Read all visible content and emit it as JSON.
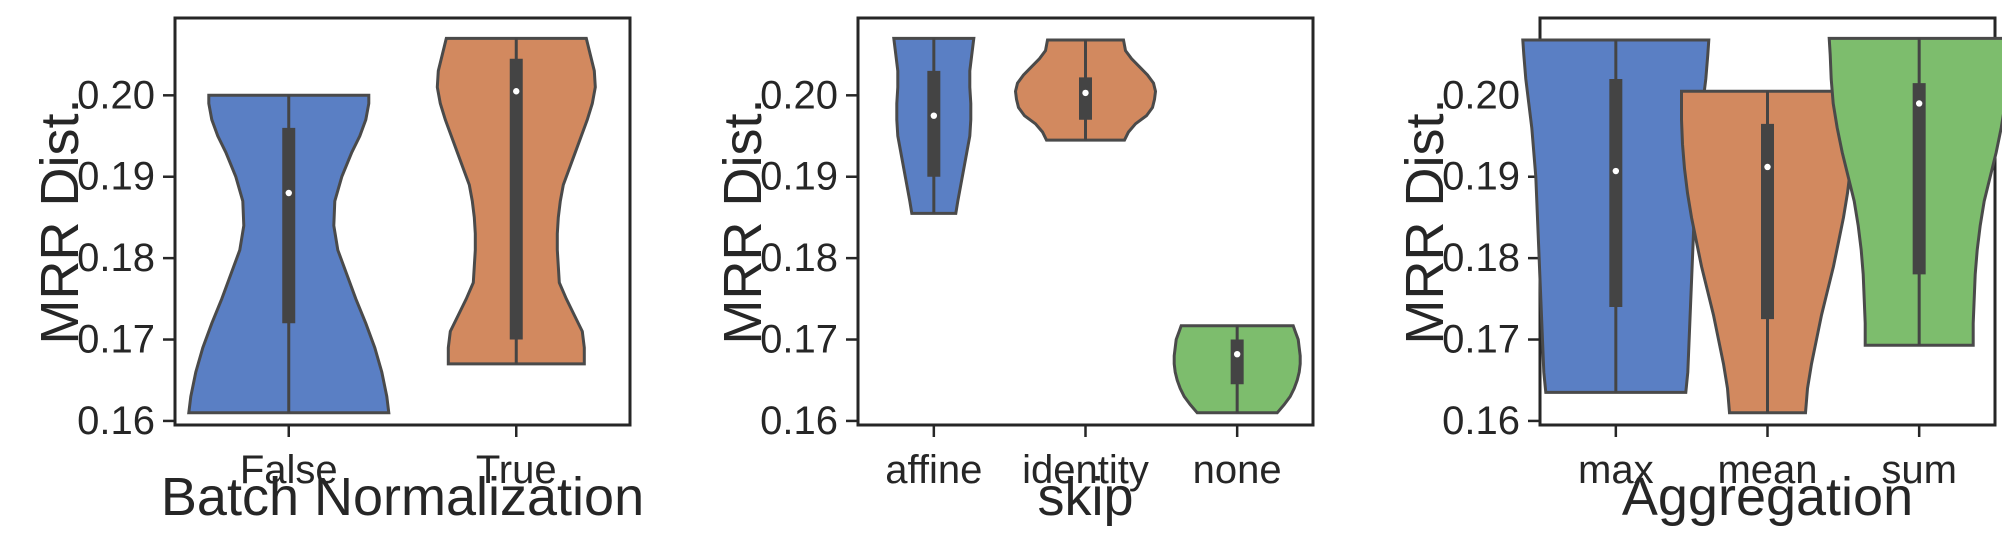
{
  "chart_data": [
    {
      "type": "violin",
      "xlabel": "Batch Normalization",
      "ylabel": "MRR Dist.",
      "ylim": [
        0.1595,
        0.2095
      ],
      "yticks": [
        "0.16",
        "0.17",
        "0.18",
        "0.19",
        "0.20"
      ],
      "categories": [
        {
          "label": "False",
          "color": "#5a7fc4",
          "min": 0.161,
          "max": 0.2,
          "q1": 0.172,
          "median": 0.188,
          "q3": 0.196,
          "profile": [
            [
              0.161,
              1.0
            ],
            [
              0.163,
              0.98
            ],
            [
              0.166,
              0.93
            ],
            [
              0.169,
              0.86
            ],
            [
              0.172,
              0.77
            ],
            [
              0.175,
              0.67
            ],
            [
              0.178,
              0.58
            ],
            [
              0.181,
              0.49
            ],
            [
              0.184,
              0.45
            ],
            [
              0.187,
              0.46
            ],
            [
              0.19,
              0.53
            ],
            [
              0.193,
              0.63
            ],
            [
              0.195,
              0.71
            ],
            [
              0.197,
              0.77
            ],
            [
              0.199,
              0.8
            ],
            [
              0.2,
              0.8
            ]
          ]
        },
        {
          "label": "True",
          "color": "#d2895f",
          "min": 0.167,
          "max": 0.207,
          "q1": 0.17,
          "median": 0.2005,
          "q3": 0.2045,
          "profile": [
            [
              0.167,
              0.68
            ],
            [
              0.169,
              0.68
            ],
            [
              0.171,
              0.66
            ],
            [
              0.173,
              0.58
            ],
            [
              0.175,
              0.5
            ],
            [
              0.177,
              0.43
            ],
            [
              0.179,
              0.42
            ],
            [
              0.181,
              0.41
            ],
            [
              0.183,
              0.41
            ],
            [
              0.185,
              0.42
            ],
            [
              0.187,
              0.44
            ],
            [
              0.189,
              0.47
            ],
            [
              0.191,
              0.53
            ],
            [
              0.193,
              0.59
            ],
            [
              0.195,
              0.65
            ],
            [
              0.197,
              0.71
            ],
            [
              0.199,
              0.76
            ],
            [
              0.201,
              0.79
            ],
            [
              0.203,
              0.78
            ],
            [
              0.205,
              0.74
            ],
            [
              0.207,
              0.7
            ]
          ]
        }
      ]
    },
    {
      "type": "violin",
      "xlabel": "skip",
      "ylabel": "MRR Dist.",
      "ylim": [
        0.1595,
        0.2095
      ],
      "yticks": [
        "0.16",
        "0.17",
        "0.18",
        "0.19",
        "0.20"
      ],
      "categories": [
        {
          "label": "affine",
          "color": "#5a7fc4",
          "min": 0.1855,
          "max": 0.207,
          "q1": 0.19,
          "median": 0.1975,
          "q3": 0.203,
          "profile": [
            [
              0.1855,
              0.22
            ],
            [
              0.187,
              0.24
            ],
            [
              0.189,
              0.27
            ],
            [
              0.191,
              0.3
            ],
            [
              0.193,
              0.33
            ],
            [
              0.195,
              0.36
            ],
            [
              0.197,
              0.37
            ],
            [
              0.199,
              0.37
            ],
            [
              0.201,
              0.36
            ],
            [
              0.203,
              0.36
            ],
            [
              0.205,
              0.38
            ],
            [
              0.207,
              0.4
            ]
          ]
        },
        {
          "label": "identity",
          "color": "#d2895f",
          "min": 0.1945,
          "max": 0.2068,
          "q1": 0.197,
          "median": 0.2003,
          "q3": 0.2022,
          "profile": [
            [
              0.1945,
              0.39
            ],
            [
              0.1955,
              0.43
            ],
            [
              0.1965,
              0.5
            ],
            [
              0.1975,
              0.61
            ],
            [
              0.1985,
              0.67
            ],
            [
              0.1995,
              0.69
            ],
            [
              0.2005,
              0.7
            ],
            [
              0.2015,
              0.68
            ],
            [
              0.2025,
              0.62
            ],
            [
              0.2035,
              0.54
            ],
            [
              0.2045,
              0.46
            ],
            [
              0.2055,
              0.4
            ],
            [
              0.2068,
              0.38
            ]
          ]
        },
        {
          "label": "none",
          "color": "#7dbd6d",
          "min": 0.161,
          "max": 0.1717,
          "q1": 0.1645,
          "median": 0.1682,
          "q3": 0.17,
          "profile": [
            [
              0.161,
              0.4
            ],
            [
              0.162,
              0.47
            ],
            [
              0.163,
              0.53
            ],
            [
              0.164,
              0.57
            ],
            [
              0.165,
              0.6
            ],
            [
              0.166,
              0.62
            ],
            [
              0.167,
              0.63
            ],
            [
              0.168,
              0.63
            ],
            [
              0.169,
              0.62
            ],
            [
              0.17,
              0.61
            ],
            [
              0.171,
              0.58
            ],
            [
              0.1717,
              0.56
            ]
          ]
        }
      ]
    },
    {
      "type": "violin",
      "xlabel": "Aggregation",
      "ylabel": "MRR Dist.",
      "ylim": [
        0.1595,
        0.2095
      ],
      "yticks": [
        "0.16",
        "0.17",
        "0.18",
        "0.19",
        "0.20"
      ],
      "categories": [
        {
          "label": "max",
          "color": "#5a7fc4",
          "min": 0.1635,
          "max": 0.2068,
          "q1": 0.174,
          "median": 0.1907,
          "q3": 0.202,
          "profile": [
            [
              0.1635,
              0.7
            ],
            [
              0.166,
              0.72
            ],
            [
              0.169,
              0.73
            ],
            [
              0.172,
              0.74
            ],
            [
              0.175,
              0.75
            ],
            [
              0.178,
              0.76
            ],
            [
              0.181,
              0.77
            ],
            [
              0.184,
              0.78
            ],
            [
              0.187,
              0.79
            ],
            [
              0.19,
              0.8
            ],
            [
              0.193,
              0.82
            ],
            [
              0.196,
              0.84
            ],
            [
              0.199,
              0.87
            ],
            [
              0.202,
              0.9
            ],
            [
              0.205,
              0.92
            ],
            [
              0.2068,
              0.93
            ]
          ]
        },
        {
          "label": "mean",
          "color": "#d2895f",
          "min": 0.161,
          "max": 0.2005,
          "q1": 0.1725,
          "median": 0.1912,
          "q3": 0.1965,
          "profile": [
            [
              0.161,
              0.38
            ],
            [
              0.164,
              0.4
            ],
            [
              0.167,
              0.44
            ],
            [
              0.17,
              0.49
            ],
            [
              0.173,
              0.54
            ],
            [
              0.176,
              0.6
            ],
            [
              0.179,
              0.66
            ],
            [
              0.182,
              0.71
            ],
            [
              0.185,
              0.76
            ],
            [
              0.188,
              0.8
            ],
            [
              0.191,
              0.83
            ],
            [
              0.194,
              0.85
            ],
            [
              0.197,
              0.86
            ],
            [
              0.199,
              0.86
            ],
            [
              0.2005,
              0.86
            ]
          ]
        },
        {
          "label": "sum",
          "color": "#7dbd6d",
          "min": 0.1693,
          "max": 0.207,
          "q1": 0.178,
          "median": 0.199,
          "q3": 0.2015,
          "profile": [
            [
              0.1693,
              0.54
            ],
            [
              0.172,
              0.54
            ],
            [
              0.175,
              0.55
            ],
            [
              0.178,
              0.56
            ],
            [
              0.181,
              0.58
            ],
            [
              0.184,
              0.61
            ],
            [
              0.187,
              0.65
            ],
            [
              0.19,
              0.71
            ],
            [
              0.193,
              0.77
            ],
            [
              0.196,
              0.82
            ],
            [
              0.199,
              0.86
            ],
            [
              0.202,
              0.88
            ],
            [
              0.205,
              0.89
            ],
            [
              0.207,
              0.9
            ]
          ]
        }
      ]
    }
  ]
}
